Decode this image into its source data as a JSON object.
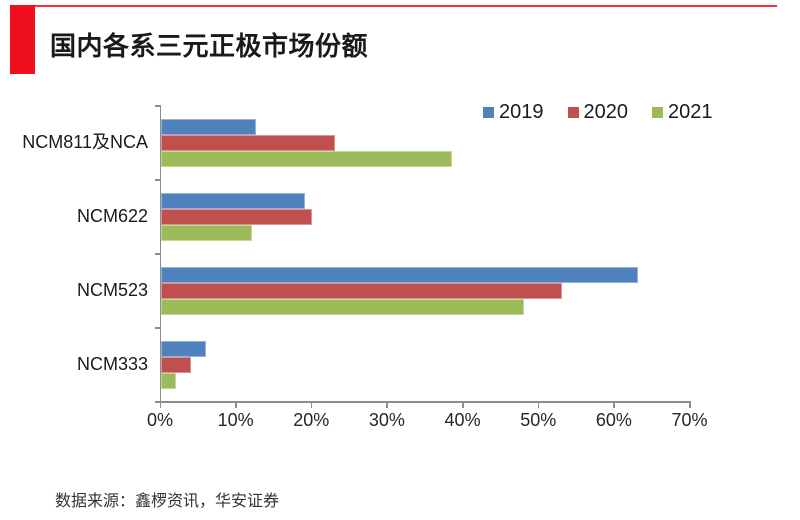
{
  "header": {
    "title": "国内各系三元正极市场份额"
  },
  "footer": {
    "source": "数据来源：鑫椤资讯，华安证券"
  },
  "colors": {
    "accent_red": "#F00F1E",
    "accent_line": "#F2333E",
    "axis": "#8C8C8C",
    "tick_text": "#262626"
  },
  "chart_data": {
    "type": "bar",
    "orientation": "horizontal",
    "title": "国内各系三元正极市场份额",
    "xlabel": "",
    "ylabel": "",
    "xlim": [
      0,
      70
    ],
    "x_ticks": [
      "0%",
      "10%",
      "20%",
      "30%",
      "40%",
      "50%",
      "60%",
      "70%"
    ],
    "grid": false,
    "legend_position": "top-right",
    "categories": [
      "NCM811及NCA",
      "NCM622",
      "NCM523",
      "NCM333"
    ],
    "series": [
      {
        "name": "2019",
        "color": "#4F81BD",
        "border": "#95B3D7",
        "values": [
          12.5,
          19,
          63,
          6
        ]
      },
      {
        "name": "2020",
        "color": "#C0504D",
        "border": "#D99694",
        "values": [
          23,
          20,
          53,
          4
        ]
      },
      {
        "name": "2021",
        "color": "#9BBB59",
        "border": "#C3D69B",
        "values": [
          38.5,
          12,
          48,
          2
        ]
      }
    ]
  }
}
